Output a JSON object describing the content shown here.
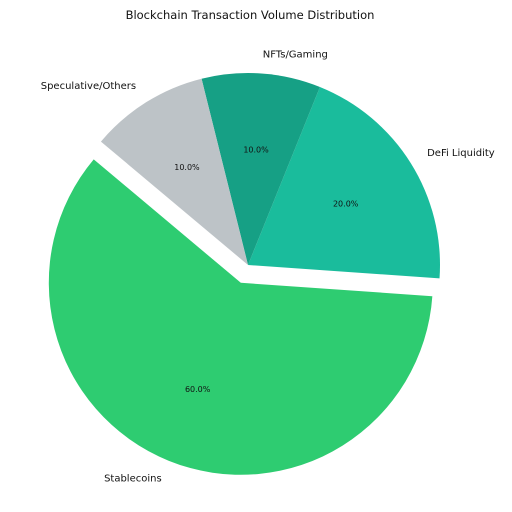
{
  "chart_data": {
    "type": "pie",
    "title": "Blockchain Transaction Volume Distribution",
    "start_angle_deg": 140,
    "direction": "counterclockwise",
    "slices": [
      {
        "label": "Stablecoins",
        "value": 60.0,
        "pct_label": "60.0%",
        "color": "#2ecc71",
        "explode": 0.1
      },
      {
        "label": "DeFi Liquidity",
        "value": 20.0,
        "pct_label": "20.0%",
        "color": "#1abc9c",
        "explode": 0
      },
      {
        "label": "NFTs/Gaming",
        "value": 10.0,
        "pct_label": "10.0%",
        "color": "#16a085",
        "explode": 0
      },
      {
        "label": "Speculative/Others",
        "value": 10.0,
        "pct_label": "10.0%",
        "color": "#bdc3c7",
        "explode": 0
      }
    ]
  }
}
